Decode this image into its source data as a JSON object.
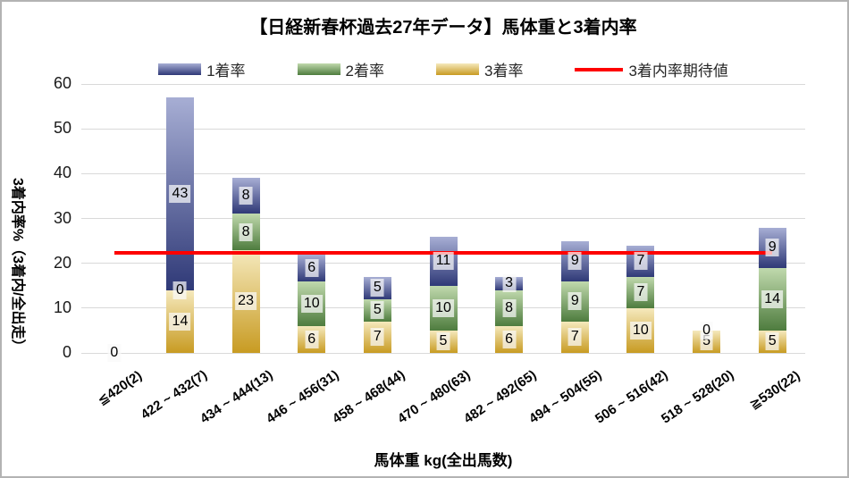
{
  "title": "【日経新春杯過去27年データ】馬体重と3着内率",
  "y_axis": {
    "title": "3着内率%（3着内/全出走）",
    "ticks": [
      60,
      50,
      40,
      30,
      20,
      10,
      0
    ]
  },
  "x_axis": {
    "title": "馬体重 kg(全出馬数)"
  },
  "legend": [
    {
      "label": "1着率",
      "type": "box",
      "series_index": 2
    },
    {
      "label": "2着率",
      "type": "box",
      "series_index": 1
    },
    {
      "label": "3着率",
      "type": "box",
      "series_index": 0
    },
    {
      "label": "3着内率期待値",
      "type": "line"
    }
  ],
  "chart_data": {
    "type": "bar",
    "stacked": true,
    "title": "【日経新春杯過去27年データ】馬体重と3着内率",
    "xlabel": "馬体重 kg(全出馬数)",
    "ylabel": "3着内率%（3着内/全出走）",
    "ylim": [
      0,
      60
    ],
    "grid": true,
    "legend_position": "top",
    "categories": [
      "≦420(2)",
      "422 ~ 432(7)",
      "434 ~ 444(13)",
      "446 ~ 456(31)",
      "458 ~ 468(44)",
      "470 ~ 480(63)",
      "482 ~ 492(65)",
      "494 ~ 504(55)",
      "506 ~ 516(42)",
      "518 ~ 528(20)",
      "≧530(22)"
    ],
    "series": [
      {
        "name": "3着率",
        "values": [
          0,
          14,
          23,
          6,
          7,
          5,
          6,
          7,
          10,
          5,
          5
        ],
        "color_light": "#f5e9bd",
        "color_dark": "#c89b22"
      },
      {
        "name": "2着率",
        "values": [
          0,
          0,
          8,
          10,
          5,
          10,
          8,
          9,
          7,
          0,
          14
        ],
        "color_light": "#c0d9ad",
        "color_dark": "#4e7c3e"
      },
      {
        "name": "1着率",
        "values": [
          0,
          43,
          8,
          6,
          5,
          11,
          3,
          9,
          7,
          0,
          9
        ],
        "color_light": "#a7aed4",
        "color_dark": "#2f3977"
      }
    ],
    "line_series": {
      "name": "3着内率期待値",
      "value": 22.25,
      "color": "#fe0000"
    },
    "gridline_color": "#d9d9d9"
  }
}
